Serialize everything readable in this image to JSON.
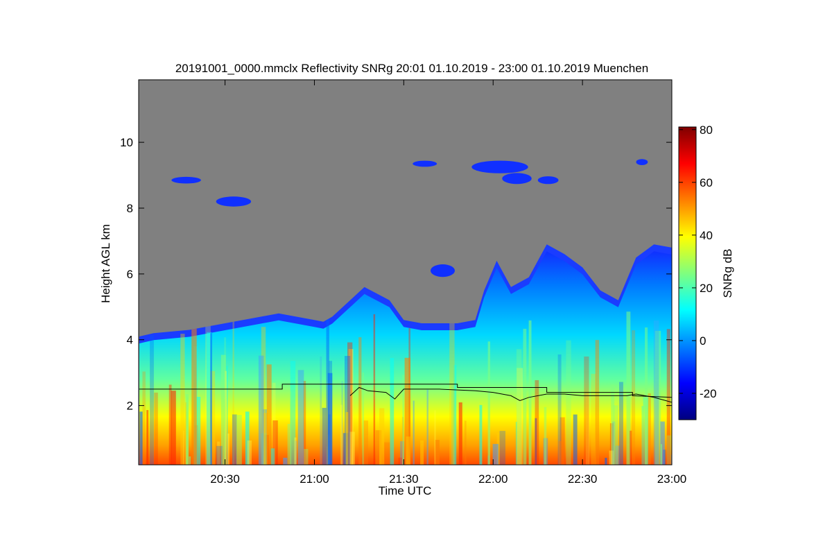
{
  "chart_data": {
    "type": "heatmap",
    "title": "20191001_0000.mmclx Reflectivity SNRg   20:01 01.10.2019 - 23:00 01.10.2019 Muenchen",
    "xlabel": "Time UTC",
    "ylabel": "Height AGL km",
    "colorbar_label": "SNRg dB",
    "x_ticks": [
      "20:30",
      "21:00",
      "21:30",
      "22:00",
      "22:30",
      "23:00"
    ],
    "x_tick_hours": [
      20.5,
      21.0,
      21.5,
      22.0,
      22.5,
      23.0
    ],
    "xlim_hours": [
      20.0167,
      23.0
    ],
    "y_ticks": [
      2,
      4,
      6,
      8,
      10
    ],
    "ylim": [
      0.2,
      11.9
    ],
    "colorbar_ticks": [
      -20,
      0,
      20,
      40,
      60,
      80
    ],
    "colorbar_range": [
      -30,
      81
    ],
    "background_color": "#808080",
    "colorscale": [
      "#00007f",
      "#0000ff",
      "#007fff",
      "#00ffff",
      "#7fff7f",
      "#ffff00",
      "#ff7f00",
      "#ff0000",
      "#7f0000"
    ],
    "echo_top_profile": [
      [
        20.02,
        4.1
      ],
      [
        20.1,
        4.2
      ],
      [
        20.2,
        4.25
      ],
      [
        20.3,
        4.3
      ],
      [
        20.4,
        4.4
      ],
      [
        20.5,
        4.5
      ],
      [
        20.6,
        4.6
      ],
      [
        20.7,
        4.7
      ],
      [
        20.8,
        4.8
      ],
      [
        20.9,
        4.7
      ],
      [
        21.0,
        4.6
      ],
      [
        21.05,
        4.55
      ],
      [
        21.1,
        4.7
      ],
      [
        21.2,
        5.2
      ],
      [
        21.28,
        5.6
      ],
      [
        21.35,
        5.4
      ],
      [
        21.42,
        5.2
      ],
      [
        21.5,
        4.6
      ],
      [
        21.6,
        4.5
      ],
      [
        21.7,
        4.5
      ],
      [
        21.8,
        4.5
      ],
      [
        21.9,
        4.6
      ],
      [
        21.95,
        5.5
      ],
      [
        22.02,
        6.4
      ],
      [
        22.1,
        5.6
      ],
      [
        22.2,
        5.9
      ],
      [
        22.3,
        6.9
      ],
      [
        22.4,
        6.6
      ],
      [
        22.5,
        6.2
      ],
      [
        22.6,
        5.5
      ],
      [
        22.7,
        5.2
      ],
      [
        22.8,
        6.5
      ],
      [
        22.9,
        6.9
      ],
      [
        23.0,
        6.8
      ]
    ],
    "cloud_base_line": [
      [
        20.02,
        2.5
      ],
      [
        20.82,
        2.5
      ],
      [
        20.82,
        2.65
      ],
      [
        21.8,
        2.65
      ],
      [
        21.8,
        2.55
      ],
      [
        22.3,
        2.55
      ],
      [
        22.3,
        2.4
      ],
      [
        22.78,
        2.4
      ],
      [
        22.78,
        2.3
      ],
      [
        23.0,
        2.25
      ]
    ],
    "cloud_base_line_2": [
      [
        21.2,
        2.3
      ],
      [
        21.25,
        2.55
      ],
      [
        21.3,
        2.45
      ],
      [
        21.4,
        2.4
      ],
      [
        21.45,
        2.2
      ],
      [
        21.5,
        2.5
      ],
      [
        21.7,
        2.5
      ],
      [
        21.9,
        2.45
      ],
      [
        22.0,
        2.4
      ],
      [
        22.1,
        2.3
      ],
      [
        22.15,
        2.15
      ],
      [
        22.2,
        2.25
      ],
      [
        22.3,
        2.35
      ],
      [
        22.4,
        2.35
      ],
      [
        22.5,
        2.3
      ],
      [
        22.6,
        2.3
      ],
      [
        22.75,
        2.3
      ],
      [
        22.8,
        2.35
      ],
      [
        22.9,
        2.25
      ],
      [
        23.0,
        2.1
      ]
    ],
    "upper_cloud_patches": [
      [
        20.2,
        8.85,
        0.15,
        0.12
      ],
      [
        20.45,
        8.2,
        0.18,
        0.22
      ],
      [
        21.55,
        9.35,
        0.12,
        0.1
      ],
      [
        21.88,
        9.25,
        0.3,
        0.3
      ],
      [
        22.05,
        8.9,
        0.15,
        0.25
      ],
      [
        22.25,
        8.85,
        0.1,
        0.15
      ],
      [
        22.8,
        9.4,
        0.05,
        0.1
      ],
      [
        21.65,
        6.1,
        0.12,
        0.3
      ]
    ]
  }
}
